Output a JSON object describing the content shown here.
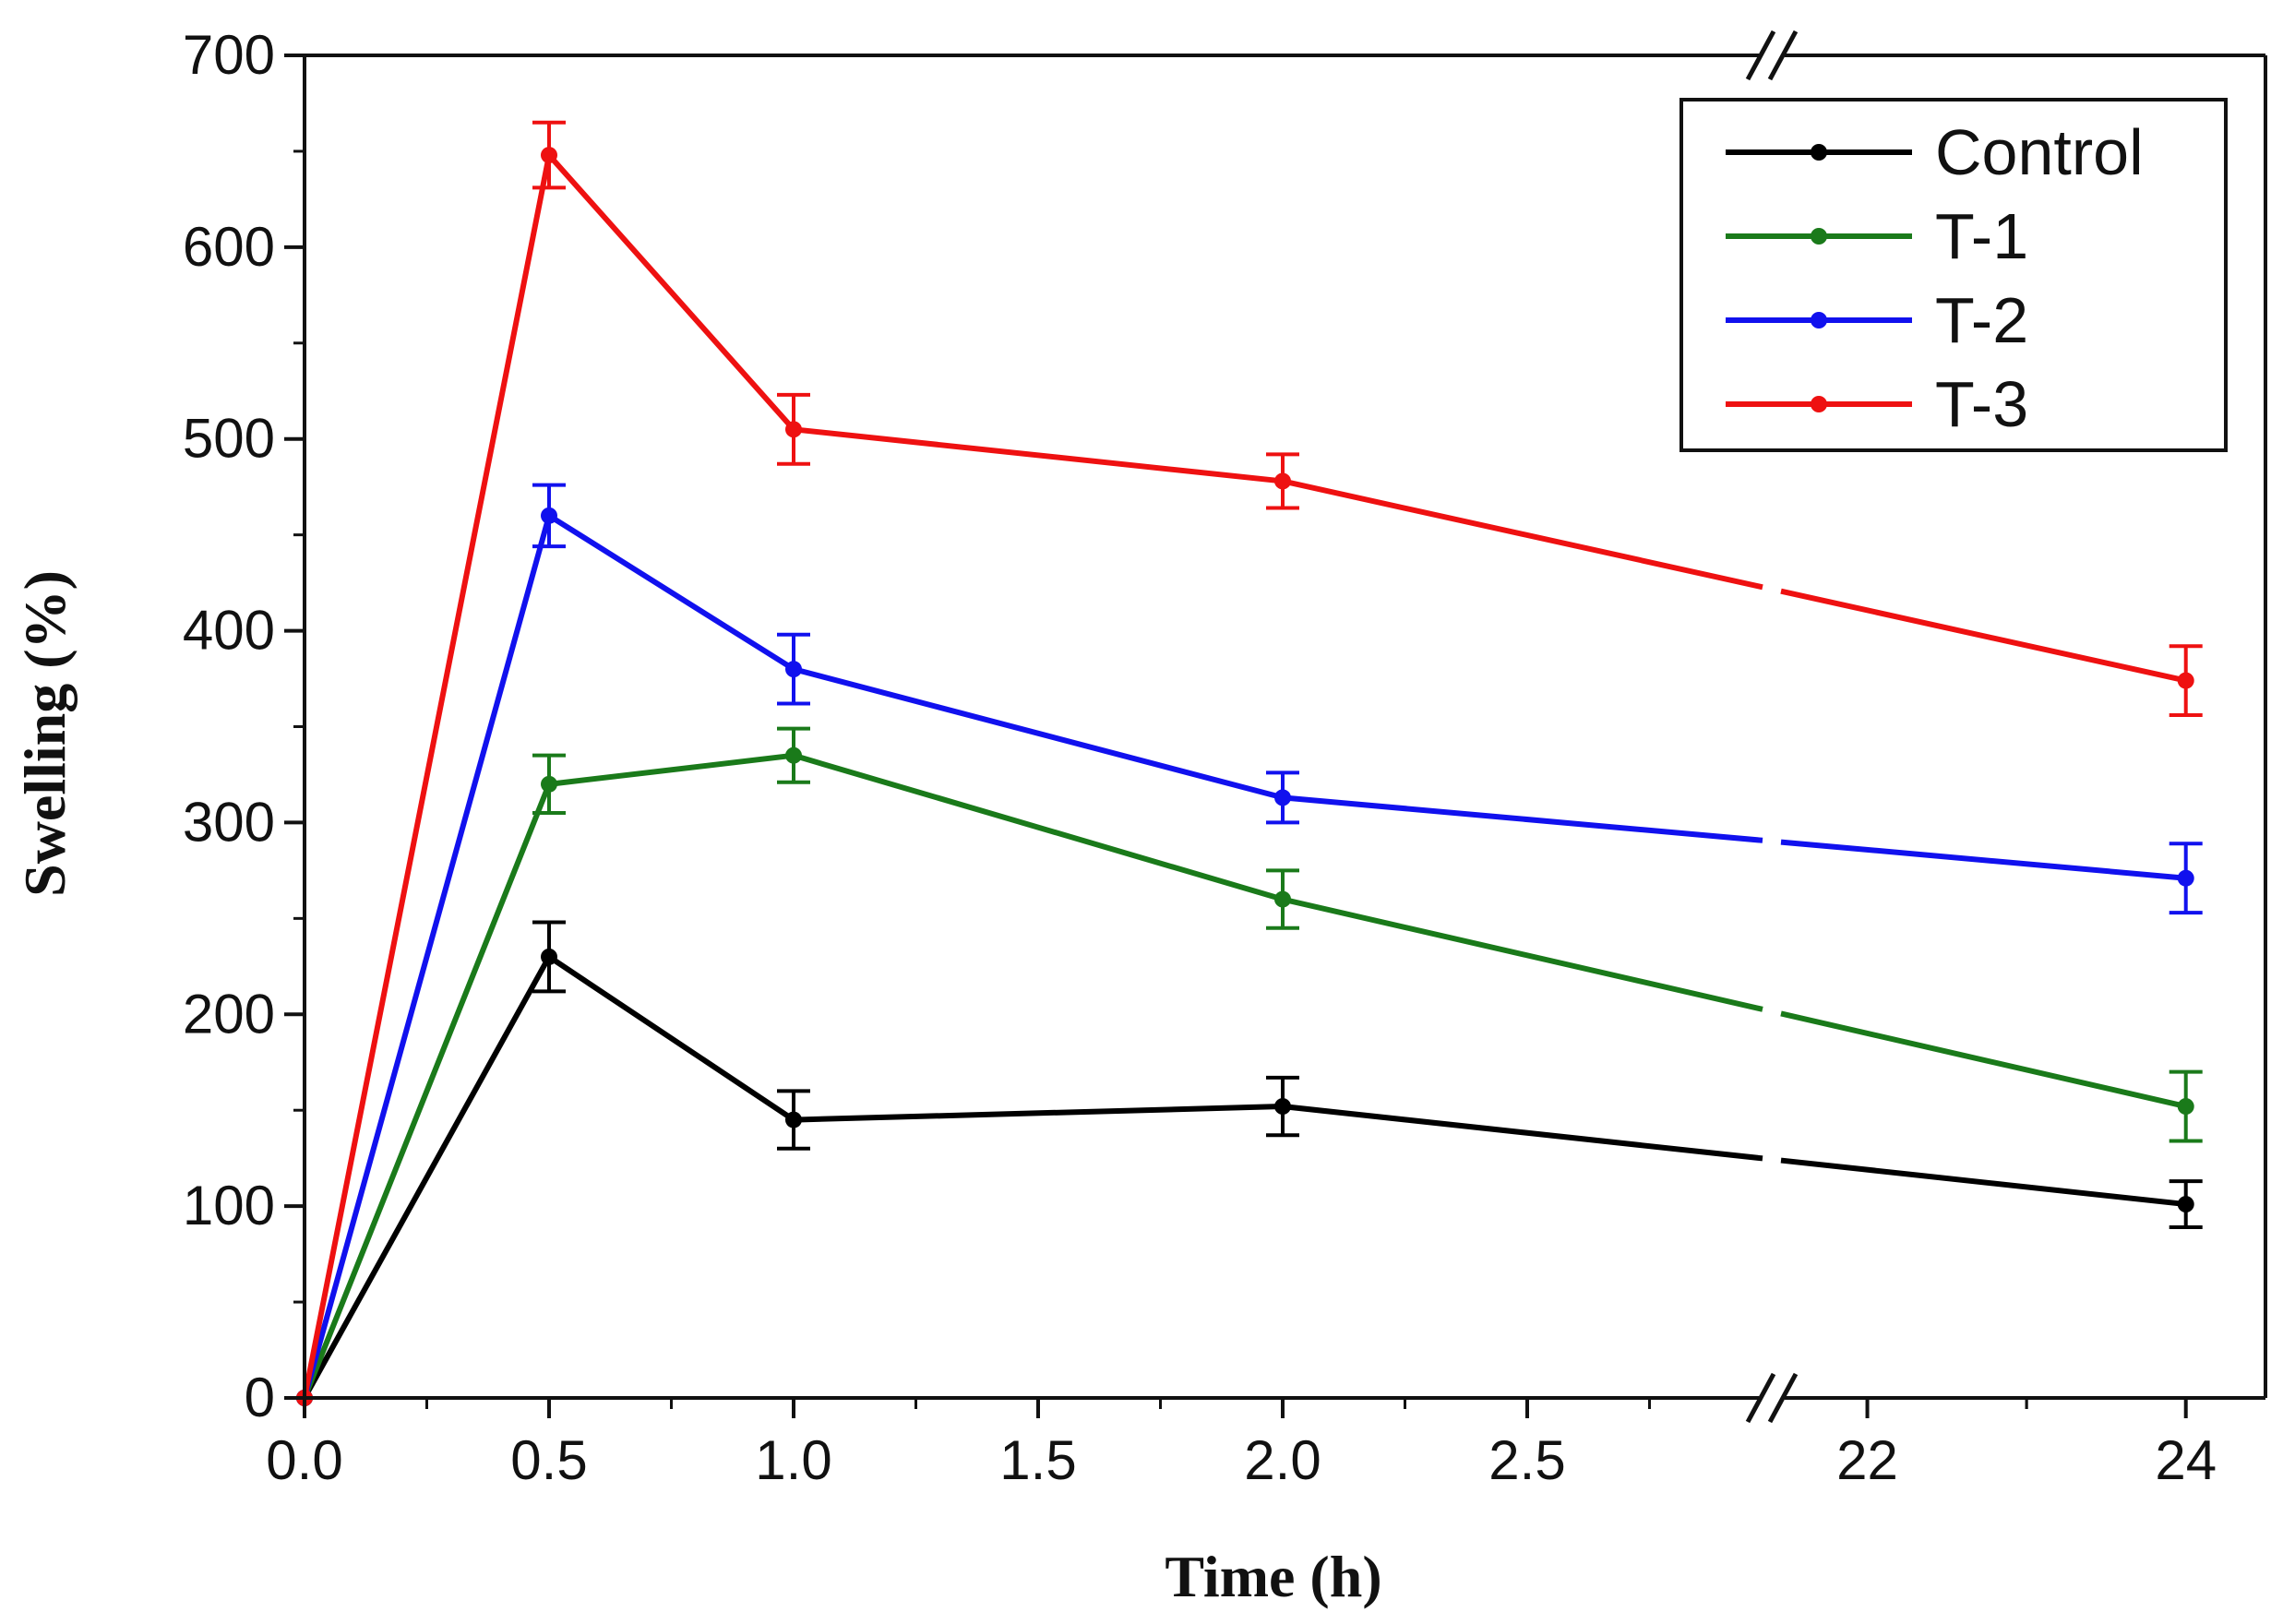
{
  "chart_data": {
    "type": "line",
    "title": "",
    "xlabel": "Time (h)",
    "ylabel": "Swelling (%)",
    "ylim": [
      0,
      700
    ],
    "yticks": [
      0,
      100,
      200,
      300,
      400,
      500,
      600,
      700
    ],
    "x_segments": [
      {
        "range": [
          0,
          3.0
        ],
        "ticks": [
          0.0,
          0.5,
          1.0,
          1.5,
          2.0,
          2.5
        ],
        "tick_labels": [
          "0.0",
          "0.5",
          "1.0",
          "1.5",
          "2.0",
          "2.5"
        ]
      },
      {
        "range": [
          21.4,
          24.5
        ],
        "ticks": [
          22,
          24
        ],
        "tick_labels": [
          "22",
          "24"
        ]
      }
    ],
    "axis_break": "between 3.0 and 21.4",
    "x": [
      0,
      0.5,
      1.0,
      2.0,
      24
    ],
    "series": [
      {
        "name": "Control",
        "color": "#000000",
        "values": [
          0,
          230,
          145,
          152,
          101
        ],
        "errors": [
          0,
          18,
          15,
          15,
          12
        ]
      },
      {
        "name": "T-1",
        "color": "#1a7a1a",
        "values": [
          0,
          320,
          335,
          260,
          152
        ],
        "errors": [
          0,
          15,
          14,
          15,
          18
        ]
      },
      {
        "name": "T-2",
        "color": "#1111ee",
        "values": [
          0,
          460,
          380,
          313,
          271
        ],
        "errors": [
          0,
          16,
          18,
          13,
          18
        ]
      },
      {
        "name": "T-3",
        "color": "#ee1111",
        "values": [
          0,
          648,
          505,
          478,
          374
        ],
        "errors": [
          0,
          17,
          18,
          14,
          18
        ]
      }
    ],
    "legend_position": "top-right"
  }
}
